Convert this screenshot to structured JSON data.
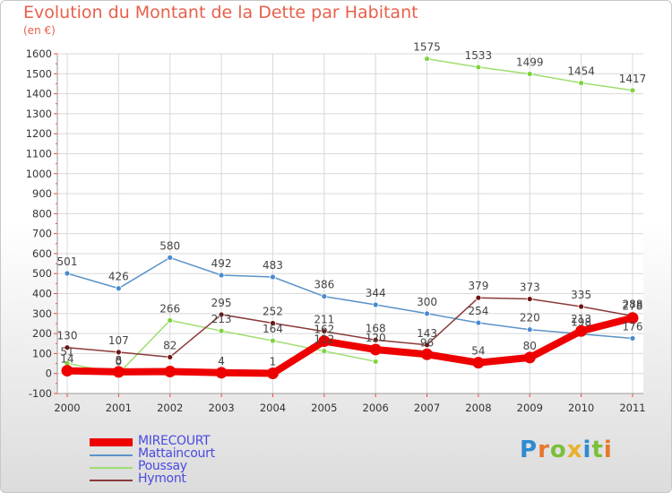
{
  "title": "Evolution du Montant de la Dette par Habitant",
  "subtitle": "(en €)",
  "logo": {
    "text": "Proxiti",
    "letters": [
      "P",
      "r",
      "o",
      "x",
      "i",
      "t",
      "i"
    ],
    "colors": [
      "#2e8bd1",
      "#e8772a",
      "#7bbf3a",
      "#e8b12a",
      "#2e8bd1",
      "#7bbf3a",
      "#e8772a"
    ]
  },
  "chart_data": {
    "type": "line",
    "x": [
      "2000",
      "2001",
      "2002",
      "2003",
      "2004",
      "2005",
      "2006",
      "2007",
      "2008",
      "2009",
      "2010",
      "2011"
    ],
    "ylim": [
      -100,
      1600
    ],
    "yticks": [
      -100,
      0,
      100,
      200,
      300,
      400,
      500,
      600,
      700,
      800,
      900,
      1000,
      1100,
      1200,
      1300,
      1400,
      1500,
      1600
    ],
    "grid": true,
    "legend": "bottom-left",
    "series": [
      {
        "name": "Mattaincourt",
        "color": "#5a93c8",
        "marker": "#4a8ad0",
        "width": 1.5,
        "values": [
          501,
          426,
          580,
          492,
          483,
          386,
          344,
          300,
          254,
          220,
          198,
          176
        ],
        "labels": [
          "501",
          "426",
          "580",
          "492",
          "483",
          "386",
          "344",
          "300",
          "254",
          "220",
          "198",
          "176"
        ]
      },
      {
        "name": "Poussay",
        "color": "#9ede6e",
        "marker": "#7ed43e",
        "width": 1.5,
        "values": [
          51,
          0,
          266,
          213,
          164,
          112,
          60,
          1575,
          1533,
          1499,
          1454,
          1417
        ],
        "labels": [
          "51",
          "0",
          "266",
          "213",
          "164",
          "112",
          "",
          "1575",
          "1533",
          "1499",
          "1454",
          "1417"
        ],
        "gap_after": 6
      },
      {
        "name": "Hymont",
        "color": "#8a3a3a",
        "marker": "#6e1414",
        "width": 1.5,
        "values": [
          130,
          107,
          82,
          295,
          252,
          211,
          168,
          143,
          379,
          373,
          335,
          288
        ],
        "labels": [
          "130",
          "107",
          "82",
          "295",
          "252",
          "211",
          "168",
          "143",
          "379",
          "373",
          "335",
          "288"
        ]
      },
      {
        "name": "MIRECOURT",
        "color": "#ee0000",
        "marker": "#ee0000",
        "width": 8,
        "values": [
          14,
          8,
          10,
          4,
          1,
          162,
          120,
          96,
          54,
          80,
          213,
          278
        ],
        "labels": [
          "14",
          "8",
          "",
          "4",
          "1",
          "162",
          "120",
          "96",
          "54",
          "80",
          "213",
          "278"
        ]
      }
    ],
    "legend_order": [
      "MIRECOURT",
      "Mattaincourt",
      "Poussay",
      "Hymont"
    ]
  }
}
